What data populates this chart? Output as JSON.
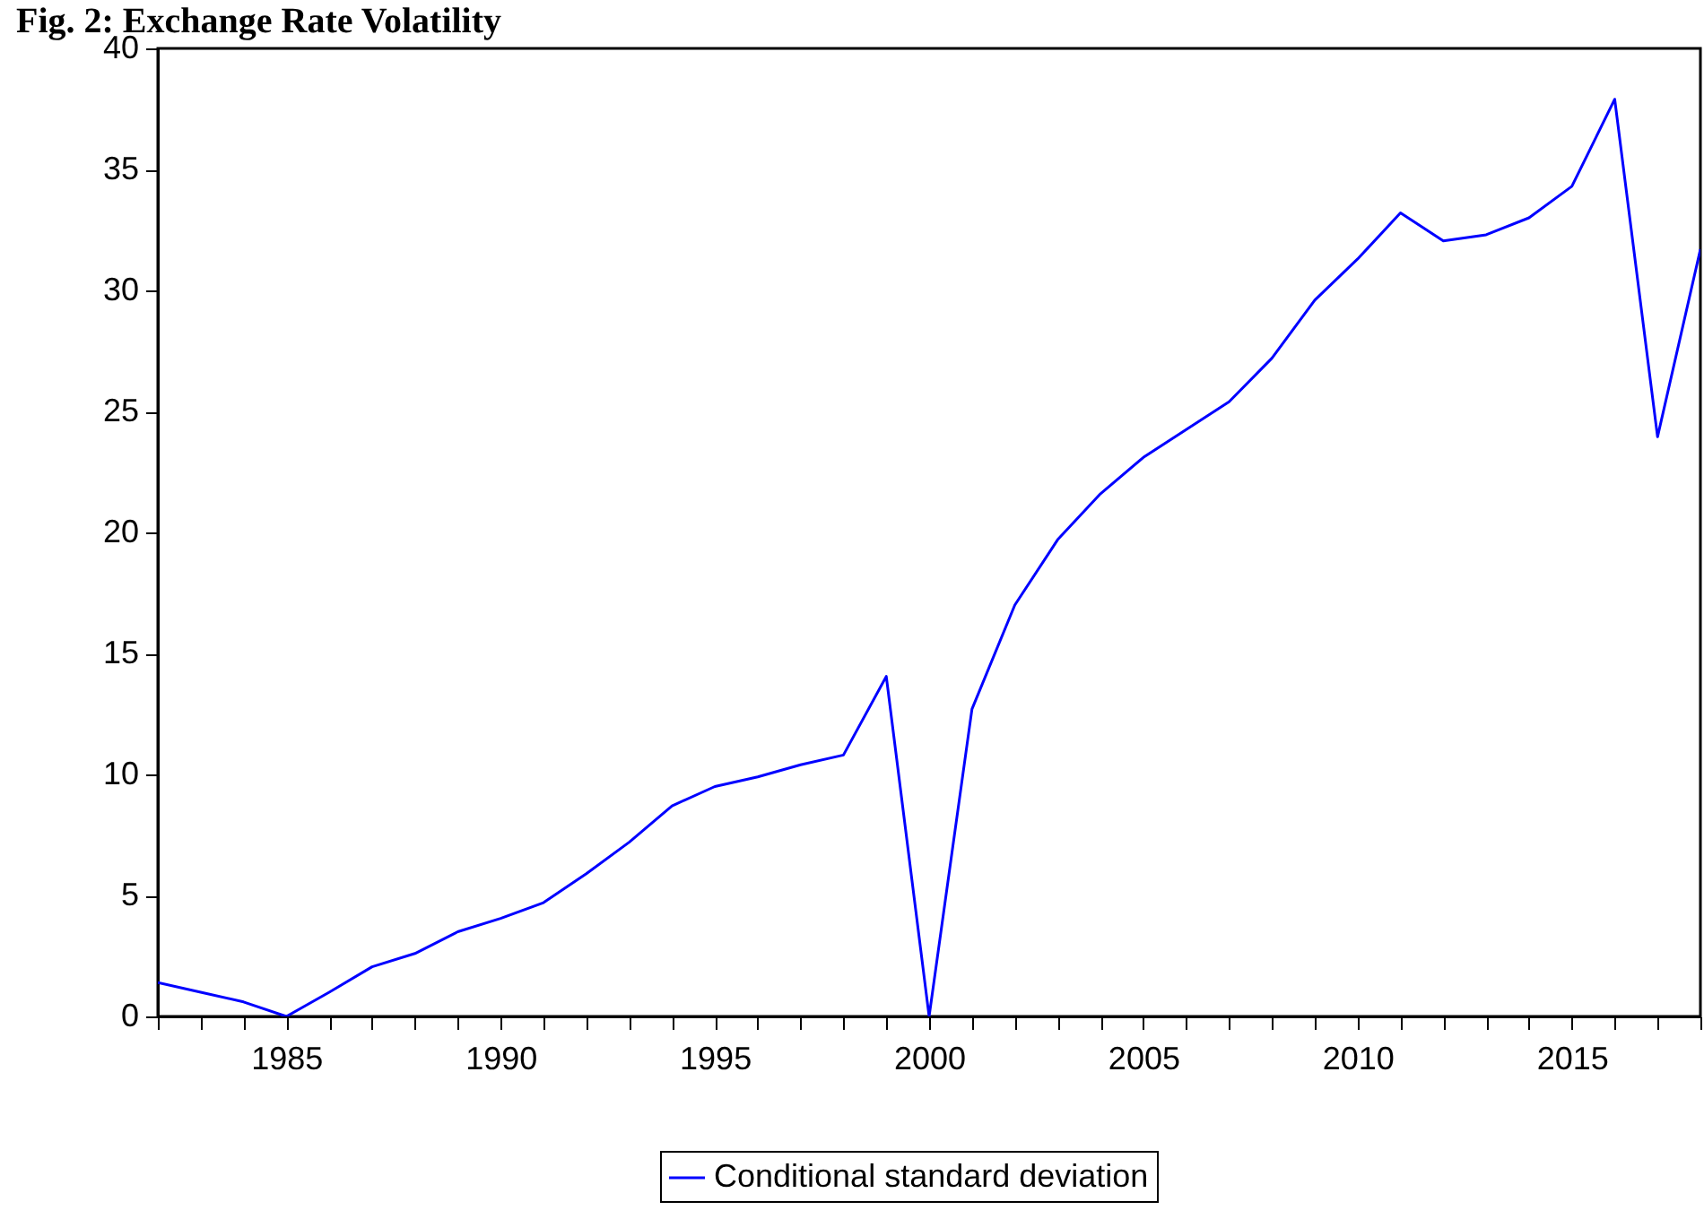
{
  "chart_data": {
    "type": "line",
    "title": "Fig. 2: Exchange Rate Volatility",
    "x": [
      1982,
      1983,
      1984,
      1985,
      1986,
      1987,
      1988,
      1989,
      1990,
      1991,
      1992,
      1993,
      1994,
      1995,
      1996,
      1997,
      1998,
      1999,
      2000,
      2001,
      2002,
      2003,
      2004,
      2005,
      2006,
      2007,
      2008,
      2009,
      2010,
      2011,
      2012,
      2013,
      2014,
      2015,
      2016,
      2017,
      2018
    ],
    "series": [
      {
        "name": "Conditional standard deviation",
        "color": "#0000ff",
        "values": [
          1.4,
          1.0,
          0.6,
          0,
          1.0,
          2.05,
          2.6,
          3.5,
          4.05,
          4.7,
          5.9,
          7.2,
          8.7,
          9.5,
          9.9,
          10.4,
          10.8,
          14.05,
          0,
          12.7,
          17.0,
          19.7,
          21.6,
          23.1,
          24.25,
          25.4,
          27.2,
          29.6,
          31.3,
          33.2,
          32.05,
          32.3,
          33.0,
          34.3,
          37.9,
          23.95,
          31.7
        ]
      }
    ],
    "xlim": [
      1982,
      2018
    ],
    "ylim": [
      0,
      40
    ],
    "xticks": [
      {
        "value": 1982,
        "label": null
      },
      {
        "value": 1983,
        "label": null
      },
      {
        "value": 1984,
        "label": null
      },
      1985,
      {
        "value": 1986,
        "label": null
      },
      {
        "value": 1987,
        "label": null
      },
      {
        "value": 1988,
        "label": null
      },
      {
        "value": 1989,
        "label": null
      },
      1990,
      {
        "value": 1991,
        "label": null
      },
      {
        "value": 1992,
        "label": null
      },
      {
        "value": 1993,
        "label": null
      },
      {
        "value": 1994,
        "label": null
      },
      1995,
      {
        "value": 1996,
        "label": null
      },
      {
        "value": 1997,
        "label": null
      },
      {
        "value": 1998,
        "label": null
      },
      {
        "value": 1999,
        "label": null
      },
      2000,
      {
        "value": 2001,
        "label": null
      },
      {
        "value": 2002,
        "label": null
      },
      {
        "value": 2003,
        "label": null
      },
      {
        "value": 2004,
        "label": null
      },
      2005,
      {
        "value": 2006,
        "label": null
      },
      {
        "value": 2007,
        "label": null
      },
      {
        "value": 2008,
        "label": null
      },
      {
        "value": 2009,
        "label": null
      },
      2010,
      {
        "value": 2011,
        "label": null
      },
      {
        "value": 2012,
        "label": null
      },
      {
        "value": 2013,
        "label": null
      },
      {
        "value": 2014,
        "label": null
      },
      2015,
      {
        "value": 2016,
        "label": null
      },
      {
        "value": 2017,
        "label": null
      },
      {
        "value": 2018,
        "label": null
      }
    ],
    "yticks": [
      0,
      5,
      10,
      15,
      20,
      25,
      30,
      35,
      40
    ],
    "legend": "bottom",
    "marker": "none",
    "line_style": "solid"
  }
}
